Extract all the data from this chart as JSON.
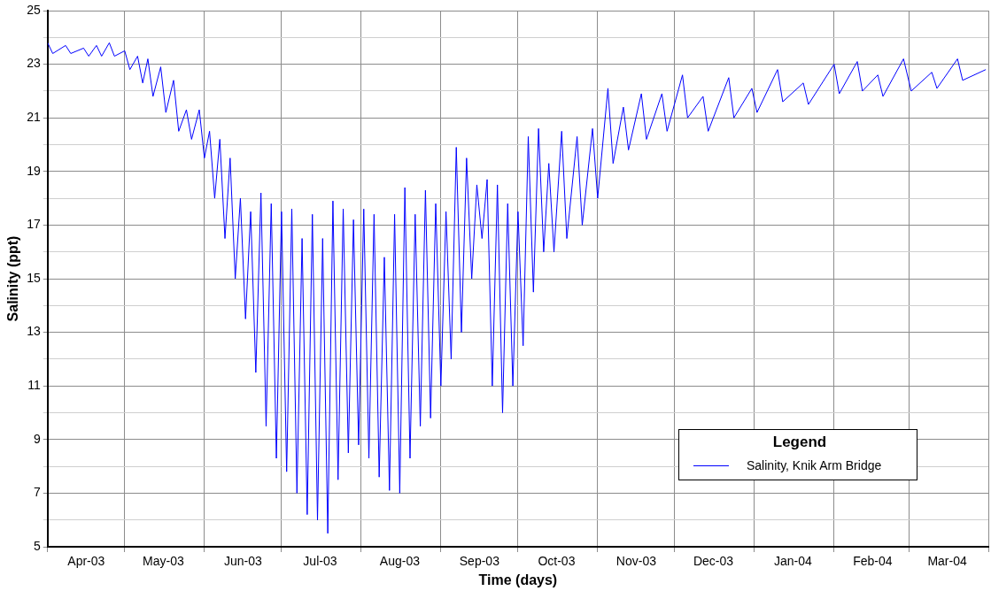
{
  "chart_data": {
    "type": "line",
    "xlabel": "Time (days)",
    "ylabel": "Salinity (ppt)",
    "legend_title": "Legend",
    "legend": "bottom right",
    "grid": true,
    "marker": "none",
    "line_style": "solid",
    "xlim": [
      "2003-04-01",
      "2004-04-01"
    ],
    "xticks": [
      {
        "value": "2003-04-01",
        "label": null
      },
      {
        "value": "2003-04-16",
        "label": "Apr-03"
      },
      {
        "value": "2003-05-01",
        "label": null
      },
      {
        "value": "2003-05-16",
        "label": "May-03"
      },
      {
        "value": "2003-06-01",
        "label": null
      },
      {
        "value": "2003-06-16",
        "label": "Jun-03"
      },
      {
        "value": "2003-07-01",
        "label": null
      },
      {
        "value": "2003-07-16",
        "label": "Jul-03"
      },
      {
        "value": "2003-08-01",
        "label": null
      },
      {
        "value": "2003-08-16",
        "label": "Aug-03"
      },
      {
        "value": "2003-09-01",
        "label": null
      },
      {
        "value": "2003-09-16",
        "label": "Sep-03"
      },
      {
        "value": "2003-10-01",
        "label": null
      },
      {
        "value": "2003-10-16",
        "label": "Oct-03"
      },
      {
        "value": "2003-11-01",
        "label": null
      },
      {
        "value": "2003-11-16",
        "label": "Nov-03"
      },
      {
        "value": "2003-12-01",
        "label": null
      },
      {
        "value": "2003-12-16",
        "label": "Dec-03"
      },
      {
        "value": "2004-01-01",
        "label": null
      },
      {
        "value": "2004-01-16",
        "label": "Jan-04"
      },
      {
        "value": "2004-02-01",
        "label": null
      },
      {
        "value": "2004-02-16",
        "label": "Feb-04"
      },
      {
        "value": "2004-03-01",
        "label": null
      },
      {
        "value": "2004-03-16",
        "label": "Mar-04"
      },
      {
        "value": "2004-04-01",
        "label": null
      }
    ],
    "ylim": [
      5,
      25
    ],
    "yticks": [
      5,
      {
        "value": 6,
        "label": null
      },
      7,
      {
        "value": 8,
        "label": null
      },
      9,
      {
        "value": 10,
        "label": null
      },
      11,
      {
        "value": 12,
        "label": null
      },
      13,
      {
        "value": 14,
        "label": null
      },
      15,
      {
        "value": 16,
        "label": null
      },
      17,
      {
        "value": 18,
        "label": null
      },
      19,
      {
        "value": 20,
        "label": null
      },
      21,
      {
        "value": 22,
        "label": null
      },
      23,
      {
        "value": 24,
        "label": null
      },
      25
    ],
    "series": [
      {
        "name": "Salinity, Knik Arm Bridge",
        "color": "#0000ff",
        "x": [
          "2003-04-01",
          "2003-04-03",
          "2003-04-08",
          "2003-04-10",
          "2003-04-15",
          "2003-04-17",
          "2003-04-20",
          "2003-04-22",
          "2003-04-25",
          "2003-04-27",
          "2003-05-01",
          "2003-05-03",
          "2003-05-06",
          "2003-05-08",
          "2003-05-10",
          "2003-05-12",
          "2003-05-15",
          "2003-05-17",
          "2003-05-20",
          "2003-05-22",
          "2003-05-25",
          "2003-05-27",
          "2003-05-30",
          "2003-06-01",
          "2003-06-03",
          "2003-06-05",
          "2003-06-07",
          "2003-06-09",
          "2003-06-11",
          "2003-06-13",
          "2003-06-15",
          "2003-06-17",
          "2003-06-19",
          "2003-06-21",
          "2003-06-23",
          "2003-06-25",
          "2003-06-27",
          "2003-06-29",
          "2003-07-01",
          "2003-07-03",
          "2003-07-05",
          "2003-07-07",
          "2003-07-09",
          "2003-07-11",
          "2003-07-13",
          "2003-07-15",
          "2003-07-17",
          "2003-07-19",
          "2003-07-21",
          "2003-07-23",
          "2003-07-25",
          "2003-07-27",
          "2003-07-29",
          "2003-07-31",
          "2003-08-02",
          "2003-08-04",
          "2003-08-06",
          "2003-08-08",
          "2003-08-10",
          "2003-08-12",
          "2003-08-14",
          "2003-08-16",
          "2003-08-18",
          "2003-08-20",
          "2003-08-22",
          "2003-08-24",
          "2003-08-26",
          "2003-08-28",
          "2003-08-30",
          "2003-09-01",
          "2003-09-03",
          "2003-09-05",
          "2003-09-07",
          "2003-09-09",
          "2003-09-11",
          "2003-09-13",
          "2003-09-15",
          "2003-09-17",
          "2003-09-19",
          "2003-09-21",
          "2003-09-23",
          "2003-09-25",
          "2003-09-27",
          "2003-09-29",
          "2003-10-01",
          "2003-10-03",
          "2003-10-05",
          "2003-10-07",
          "2003-10-09",
          "2003-10-11",
          "2003-10-13",
          "2003-10-15",
          "2003-10-18",
          "2003-10-20",
          "2003-10-24",
          "2003-10-26",
          "2003-10-30",
          "2003-11-01",
          "2003-11-05",
          "2003-11-07",
          "2003-11-11",
          "2003-11-13",
          "2003-11-18",
          "2003-11-20",
          "2003-11-26",
          "2003-11-28",
          "2003-12-04",
          "2003-12-06",
          "2003-12-12",
          "2003-12-14",
          "2003-12-22",
          "2003-12-24",
          "2003-12-31",
          "2004-01-02",
          "2004-01-10",
          "2004-01-12",
          "2004-01-20",
          "2004-01-22",
          "2004-02-01",
          "2004-02-03",
          "2004-02-10",
          "2004-02-12",
          "2004-02-18",
          "2004-02-20",
          "2004-02-28",
          "2004-03-02",
          "2004-03-10",
          "2004-03-12",
          "2004-03-20",
          "2004-03-22",
          "2004-03-31"
        ],
        "values": [
          23.8,
          23.4,
          23.7,
          23.4,
          23.6,
          23.3,
          23.7,
          23.3,
          23.8,
          23.3,
          23.5,
          22.8,
          23.3,
          22.3,
          23.2,
          21.8,
          22.9,
          21.2,
          22.4,
          20.5,
          21.3,
          20.2,
          21.3,
          19.5,
          20.5,
          18.0,
          20.2,
          16.5,
          19.5,
          15.0,
          18.0,
          13.5,
          17.5,
          11.5,
          18.2,
          9.5,
          17.8,
          8.3,
          17.5,
          7.8,
          17.6,
          7.0,
          16.5,
          6.2,
          17.4,
          6.0,
          16.5,
          5.5,
          17.9,
          7.5,
          17.6,
          8.5,
          17.2,
          8.8,
          17.6,
          8.3,
          17.4,
          7.6,
          15.8,
          7.1,
          17.4,
          7.0,
          18.4,
          8.3,
          17.4,
          9.5,
          18.3,
          9.8,
          17.8,
          11.0,
          17.5,
          12.0,
          19.9,
          13.0,
          19.5,
          15.0,
          18.5,
          16.5,
          18.7,
          11.0,
          18.5,
          10.0,
          17.8,
          11.0,
          17.5,
          12.5,
          20.3,
          14.5,
          20.6,
          16.0,
          19.3,
          16.0,
          20.5,
          16.5,
          20.3,
          17.0,
          20.6,
          18.0,
          22.1,
          19.3,
          21.4,
          19.8,
          21.9,
          20.2,
          21.9,
          20.5,
          22.6,
          21.0,
          21.8,
          20.5,
          22.5,
          21.0,
          22.1,
          21.2,
          22.8,
          21.6,
          22.3,
          21.5,
          23.0,
          21.9,
          23.1,
          22.0,
          22.6,
          21.8,
          23.2,
          22.0,
          22.7,
          22.1,
          23.2,
          22.4,
          22.8
        ]
      }
    ]
  }
}
